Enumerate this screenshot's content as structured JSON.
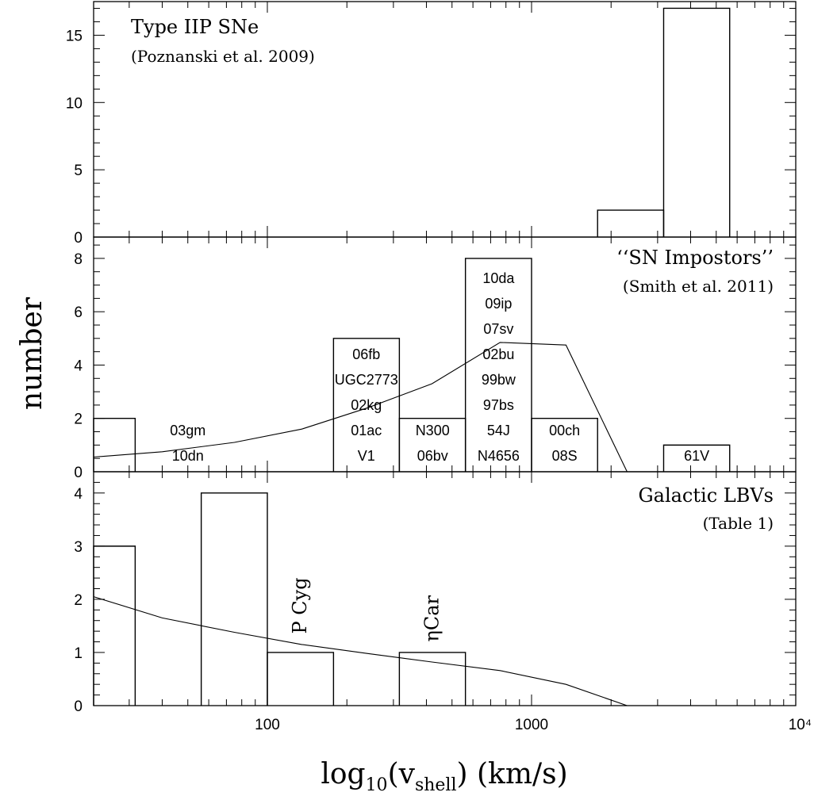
{
  "chart_data": {
    "type": "histogram",
    "xlabel": {
      "main": "log",
      "sub1": "10",
      "mid": "(v",
      "sub2": "shell",
      "end": ")  (km/s)"
    },
    "ylabel": "number",
    "x_axis": {
      "scale": "log",
      "xlim": [
        22,
        10000
      ],
      "tick_labels": [
        {
          "value": 100,
          "text": "100"
        },
        {
          "value": 1000,
          "text": "1000"
        },
        {
          "value": 10000,
          "text": "10⁴"
        }
      ]
    },
    "panels": [
      {
        "id": "top",
        "title": "Type IIP SNe",
        "subtitle": "(Poznanski et al. 2009)",
        "ylim": [
          0,
          17.5
        ],
        "yticks": [
          {
            "value": 0,
            "text": "0"
          },
          {
            "value": 5,
            "text": "5"
          },
          {
            "value": 10,
            "text": "10"
          },
          {
            "value": 15,
            "text": "15"
          }
        ],
        "bins": [
          {
            "x0": 1778,
            "x1": 3162,
            "count": 2
          },
          {
            "x0": 3162,
            "x1": 5623,
            "count": 17
          }
        ],
        "curve": [],
        "bin_labels": []
      },
      {
        "id": "middle",
        "title": "‘‘SN Impostors’’",
        "subtitle": "(Smith et al. 2011)",
        "ylim": [
          0,
          8.8
        ],
        "yticks": [
          {
            "value": 0,
            "text": "0"
          },
          {
            "value": 2,
            "text": "2"
          },
          {
            "value": 4,
            "text": "4"
          },
          {
            "value": 6,
            "text": "6"
          },
          {
            "value": 8,
            "text": "8"
          }
        ],
        "bins": [
          {
            "x0": 22,
            "x1": 31.6,
            "count": 2
          },
          {
            "x0": 178,
            "x1": 316,
            "count": 5
          },
          {
            "x0": 316,
            "x1": 562,
            "count": 2
          },
          {
            "x0": 562,
            "x1": 1000,
            "count": 8
          },
          {
            "x0": 1000,
            "x1": 1778,
            "count": 2
          },
          {
            "x0": 3162,
            "x1": 5623,
            "count": 1
          }
        ],
        "curve": [
          [
            22,
            0.55
          ],
          [
            40,
            0.75
          ],
          [
            75,
            1.1
          ],
          [
            135,
            1.6
          ],
          [
            240,
            2.4
          ],
          [
            420,
            3.3
          ],
          [
            760,
            4.85
          ],
          [
            1350,
            4.75
          ],
          [
            2300,
            0
          ]
        ],
        "bin_labels": [
          {
            "x": 50,
            "labels": [
              "03gm",
              "10dn"
            ]
          },
          {
            "x": 237,
            "labels": [
              "06fb",
              "UGC2773",
              "02kg",
              "01ac",
              "V1"
            ]
          },
          {
            "x": 422,
            "labels": [
              "N300",
              "06bv"
            ]
          },
          {
            "x": 750,
            "labels": [
              "10da",
              "09ip",
              "07sv",
              "02bu",
              "99bw",
              "97bs",
              "54J",
              "N4656"
            ]
          },
          {
            "x": 1334,
            "labels": [
              "00ch",
              "08S"
            ]
          },
          {
            "x": 4217,
            "labels": [
              "61V"
            ]
          }
        ]
      },
      {
        "id": "bottom",
        "title": "Galactic LBVs",
        "subtitle": "(Table 1)",
        "ylim": [
          0,
          4.4
        ],
        "yticks": [
          {
            "value": 0,
            "text": "0"
          },
          {
            "value": 1,
            "text": "1"
          },
          {
            "value": 2,
            "text": "2"
          },
          {
            "value": 3,
            "text": "3"
          },
          {
            "value": 4,
            "text": "4"
          }
        ],
        "bins": [
          {
            "x0": 22,
            "x1": 31.6,
            "count": 3
          },
          {
            "x0": 56.2,
            "x1": 100,
            "count": 4
          },
          {
            "x0": 100,
            "x1": 178,
            "count": 1
          },
          {
            "x0": 316,
            "x1": 562,
            "count": 1
          }
        ],
        "curve": [
          [
            22,
            2.05
          ],
          [
            40,
            1.65
          ],
          [
            75,
            1.38
          ],
          [
            135,
            1.15
          ],
          [
            240,
            0.98
          ],
          [
            420,
            0.82
          ],
          [
            760,
            0.66
          ],
          [
            1350,
            0.4
          ],
          [
            2300,
            0
          ]
        ],
        "bin_labels": [],
        "annotations": [
          {
            "text": "P Cyg",
            "x": 133,
            "y": 1.35
          },
          {
            "text": "ηCar",
            "x": 420,
            "y": 1.2
          }
        ]
      }
    ]
  }
}
